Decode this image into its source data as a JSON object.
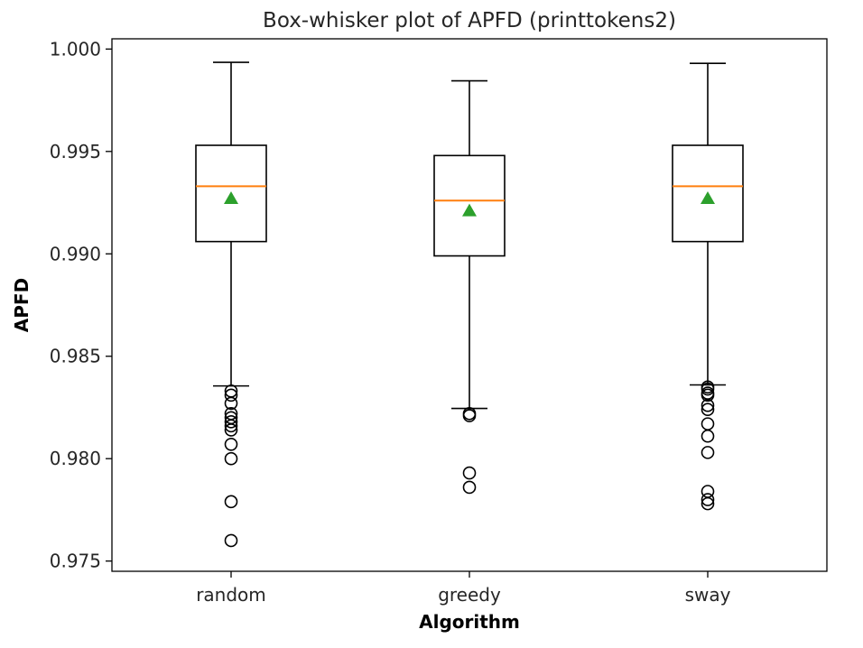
{
  "chart_data": {
    "type": "boxplot",
    "title": "Box-whisker plot of APFD (printtokens2)",
    "xlabel": "Algorithm",
    "ylabel": "APFD",
    "ylim": [
      0.9745,
      1.0005
    ],
    "yticks": [
      "0.975",
      "0.980",
      "0.985",
      "0.990",
      "0.995",
      "1.000"
    ],
    "ytick_values": [
      0.975,
      0.98,
      0.985,
      0.99,
      0.995,
      1.0
    ],
    "grid": false,
    "colors": {
      "box": "#000000",
      "median": "#ff7f0e",
      "mean": "#2ca02c"
    },
    "categories": [
      "random",
      "greedy",
      "sway"
    ],
    "boxes": [
      {
        "name": "random",
        "whisker_low": 0.98355,
        "q1": 0.9906,
        "median": 0.9933,
        "q3": 0.9953,
        "whisker_high": 0.99935,
        "mean": 0.9927,
        "outliers": [
          0.9833,
          0.9831,
          0.9827,
          0.9822,
          0.982,
          0.9818,
          0.9816,
          0.9814,
          0.9807,
          0.98,
          0.9779,
          0.976
        ]
      },
      {
        "name": "greedy",
        "whisker_low": 0.98245,
        "q1": 0.9899,
        "median": 0.9926,
        "q3": 0.9948,
        "whisker_high": 0.99845,
        "mean": 0.9921,
        "outliers": [
          0.9822,
          0.9821,
          0.9793,
          0.9786
        ]
      },
      {
        "name": "sway",
        "whisker_low": 0.9836,
        "q1": 0.9906,
        "median": 0.9933,
        "q3": 0.9953,
        "whisker_high": 0.9993,
        "mean": 0.9927,
        "outliers": [
          0.9835,
          0.9834,
          0.9832,
          0.9831,
          0.9826,
          0.9824,
          0.9817,
          0.9811,
          0.9803,
          0.9784,
          0.978,
          0.9778
        ]
      }
    ]
  }
}
